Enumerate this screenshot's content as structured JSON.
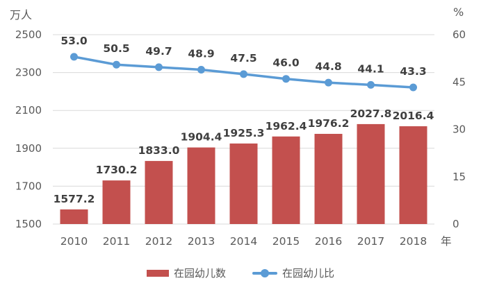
{
  "chart_data": {
    "type": "bar",
    "subtype": "bar+line combo, dual axis",
    "categories": [
      "2010",
      "2011",
      "2012",
      "2013",
      "2014",
      "2015",
      "2016",
      "2017",
      "2018"
    ],
    "series": [
      {
        "name": "在园幼儿数",
        "type": "bar",
        "axis": "left",
        "values": [
          1577.2,
          1730.2,
          1833.0,
          1904.4,
          1925.3,
          1962.4,
          1976.2,
          2027.8,
          2016.4
        ],
        "labels": [
          "1577.2",
          "1730.2",
          "1833.0",
          "1904.4",
          "1925.3",
          "1962.4",
          "1976.2",
          "2027.8",
          "2016.4"
        ],
        "color": "#c3504e"
      },
      {
        "name": "在园幼儿比",
        "type": "line",
        "axis": "right",
        "values": [
          53.0,
          50.5,
          49.7,
          48.9,
          47.5,
          46.0,
          44.8,
          44.1,
          43.3
        ],
        "labels": [
          "53.0",
          "50.5",
          "49.7",
          "48.9",
          "47.5",
          "46.0",
          "44.8",
          "44.1",
          "43.3"
        ],
        "color": "#5b9bd5"
      }
    ],
    "left_axis": {
      "unit": "万人",
      "min": 1500,
      "max": 2500,
      "ticks": [
        1500,
        1700,
        1900,
        2100,
        2300,
        2500
      ]
    },
    "right_axis": {
      "unit": "%",
      "min": 0,
      "max": 60,
      "ticks": [
        0,
        15,
        30,
        45,
        60
      ]
    },
    "x_axis": {
      "unit": "年"
    },
    "grid": true,
    "legend_position": "bottom",
    "colors": {
      "grid": "#d9d9d9",
      "tick_text": "#595959",
      "data_label_text": "#404040"
    }
  }
}
